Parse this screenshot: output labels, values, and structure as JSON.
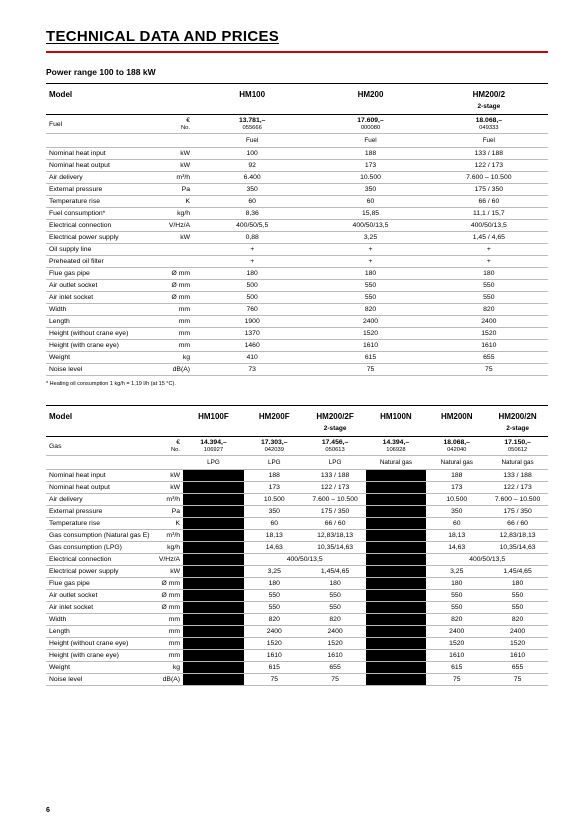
{
  "page": {
    "title": "TECHNICAL DATA AND PRICES",
    "subtitle": "Power range 100 to 188 kW",
    "footnote": "* Heating oil consumption 1 kg/h = 1,19 l/h (at 15 °C).",
    "page_number": "6"
  },
  "table1": {
    "label_col_w": "115",
    "unit_col_w": "35",
    "model_label": "Model",
    "models": [
      "HM100",
      "HM200",
      "HM200/2\n2-stage"
    ],
    "fuel_label": "Fuel",
    "price_currency": "€",
    "price_no_label": "No.",
    "prices": [
      "13.781,–",
      "17.609,–",
      "18.068,–"
    ],
    "price_nos": [
      "055666",
      "000080",
      "049333"
    ],
    "fuel_row": [
      "Fuel",
      "Fuel",
      "Fuel"
    ],
    "rows": [
      {
        "l": "Nominal heat input",
        "u": "kW",
        "v": [
          "100",
          "188",
          "133 / 188"
        ]
      },
      {
        "l": "Nominal heat output",
        "u": "kW",
        "v": [
          "92",
          "173",
          "122 / 173"
        ]
      },
      {
        "l": "Air delivery",
        "u": "m³/h",
        "v": [
          "6.400",
          "10.500",
          "7.600 – 10.500"
        ]
      },
      {
        "l": "External pressure",
        "u": "Pa",
        "v": [
          "350",
          "350",
          "175 / 350"
        ]
      },
      {
        "l": "Temperature rise",
        "u": "K",
        "v": [
          "60",
          "60",
          "66 / 60"
        ]
      },
      {
        "l": "Fuel consumption*",
        "u": "kg/h",
        "v": [
          "8,36",
          "15,85",
          "11,1 / 15,7"
        ]
      },
      {
        "l": "Electrical connection",
        "u": "V/Hz/A",
        "v": [
          "400/50/5,5",
          "400/50/13,5",
          "400/50/13,5"
        ]
      },
      {
        "l": "Electrical power supply",
        "u": "kW",
        "v": [
          "0,88",
          "3,25",
          "1,45 / 4,65"
        ]
      },
      {
        "l": "Oil supply line",
        "u": "",
        "v": [
          "+",
          "+",
          "+"
        ]
      },
      {
        "l": "Preheated oil filter",
        "u": "",
        "v": [
          "+",
          "+",
          "+"
        ]
      },
      {
        "l": "Flue gas pipe",
        "u": "Ø mm",
        "v": [
          "180",
          "180",
          "180"
        ]
      },
      {
        "l": "Air outlet socket",
        "u": "Ø mm",
        "v": [
          "500",
          "550",
          "550"
        ]
      },
      {
        "l": "Air inlet socket",
        "u": "Ø mm",
        "v": [
          "500",
          "550",
          "550"
        ]
      },
      {
        "l": "Width",
        "u": "mm",
        "v": [
          "760",
          "820",
          "820"
        ]
      },
      {
        "l": "Length",
        "u": "mm",
        "v": [
          "1900",
          "2400",
          "2400"
        ]
      },
      {
        "l": "Height (without crane eye)",
        "u": "mm",
        "v": [
          "1370",
          "1520",
          "1520"
        ]
      },
      {
        "l": "Height (with crane eye)",
        "u": "mm",
        "v": [
          "1460",
          "1610",
          "1610"
        ]
      },
      {
        "l": "Weight",
        "u": "kg",
        "v": [
          "410",
          "615",
          "655"
        ]
      },
      {
        "l": "Noise level",
        "u": "dB(A)",
        "v": [
          "73",
          "75",
          "75"
        ]
      }
    ]
  },
  "table2": {
    "model_label": "Model",
    "models": [
      "HM100F",
      "HM200F",
      "HM200/2F\n2-stage",
      "HM100N",
      "HM200N",
      "HM200/2N\n2-stage"
    ],
    "fuel_label": "Gas",
    "price_currency": "€",
    "price_no_label": "No.",
    "prices": [
      "14.394,–",
      "17.303,–",
      "17.456,–",
      "14.394,–",
      "18.068,–",
      "17.150,–"
    ],
    "price_nos": [
      "106927",
      "042039",
      "050613",
      "106928",
      "042040",
      "050612"
    ],
    "fuel_row": [
      "LPG",
      "LPG",
      "LPG",
      "Natural gas",
      "Natural gas",
      "Natural gas"
    ],
    "rows": [
      {
        "l": "Nominal heat input",
        "u": "kW",
        "v": [
          "",
          "188",
          "133 / 188",
          "",
          "188",
          "133 / 188"
        ]
      },
      {
        "l": "Nominal heat output",
        "u": "kW",
        "v": [
          "",
          "173",
          "122 / 173",
          "",
          "173",
          "122 / 173"
        ]
      },
      {
        "l": "Air delivery",
        "u": "m³/h",
        "v": [
          "",
          "10.500",
          "7.600 – 10.500",
          "",
          "10.500",
          "7.600 – 10.500"
        ]
      },
      {
        "l": "External pressure",
        "u": "Pa",
        "v": [
          "",
          "350",
          "175 / 350",
          "",
          "350",
          "175 / 350"
        ]
      },
      {
        "l": "Temperature rise",
        "u": "K",
        "v": [
          "",
          "60",
          "66 / 60",
          "",
          "60",
          "66 / 60"
        ]
      },
      {
        "l": "Gas consumption (Natural gas E)",
        "u": "m³/h",
        "v": [
          "",
          "18,13",
          "12,83/18,13",
          "",
          "18,13",
          "12,83/18,13"
        ]
      },
      {
        "l": "Gas consumption (LPG)",
        "u": "kg/h",
        "v": [
          "",
          "14,63",
          "10,35/14,63",
          "",
          "14,63",
          "10,35/14,63"
        ]
      },
      {
        "l": "Electrical connection",
        "u": "V/Hz/A",
        "v": [
          "",
          "",
          "400/50/13,5",
          "",
          "",
          "400/50/13,5"
        ],
        "span": [
          false,
          true,
          false,
          false,
          true,
          false
        ]
      },
      {
        "l": "Electrical power supply",
        "u": "kW",
        "v": [
          "",
          "3,25",
          "1,45/4,65",
          "",
          "3,25",
          "1,45/4,65"
        ]
      },
      {
        "l": "Flue gas pipe",
        "u": "Ø mm",
        "v": [
          "",
          "180",
          "180",
          "",
          "180",
          "180"
        ]
      },
      {
        "l": "Air outlet socket",
        "u": "Ø mm",
        "v": [
          "",
          "550",
          "550",
          "",
          "550",
          "550"
        ]
      },
      {
        "l": "Air inlet socket",
        "u": "Ø mm",
        "v": [
          "",
          "550",
          "550",
          "",
          "550",
          "550"
        ]
      },
      {
        "l": "Width",
        "u": "mm",
        "v": [
          "",
          "820",
          "820",
          "",
          "820",
          "820"
        ]
      },
      {
        "l": "Length",
        "u": "mm",
        "v": [
          "",
          "2400",
          "2400",
          "",
          "2400",
          "2400"
        ]
      },
      {
        "l": "Height (without crane eye)",
        "u": "mm",
        "v": [
          "",
          "1520",
          "1520",
          "",
          "1520",
          "1520"
        ]
      },
      {
        "l": "Height (with crane eye)",
        "u": "mm",
        "v": [
          "",
          "1610",
          "1610",
          "",
          "1610",
          "1610"
        ]
      },
      {
        "l": "Weight",
        "u": "kg",
        "v": [
          "",
          "615",
          "655",
          "",
          "615",
          "655"
        ]
      },
      {
        "l": "Noise level",
        "u": "dB(A)",
        "v": [
          "",
          "75",
          "75",
          "",
          "75",
          "75"
        ]
      }
    ]
  }
}
